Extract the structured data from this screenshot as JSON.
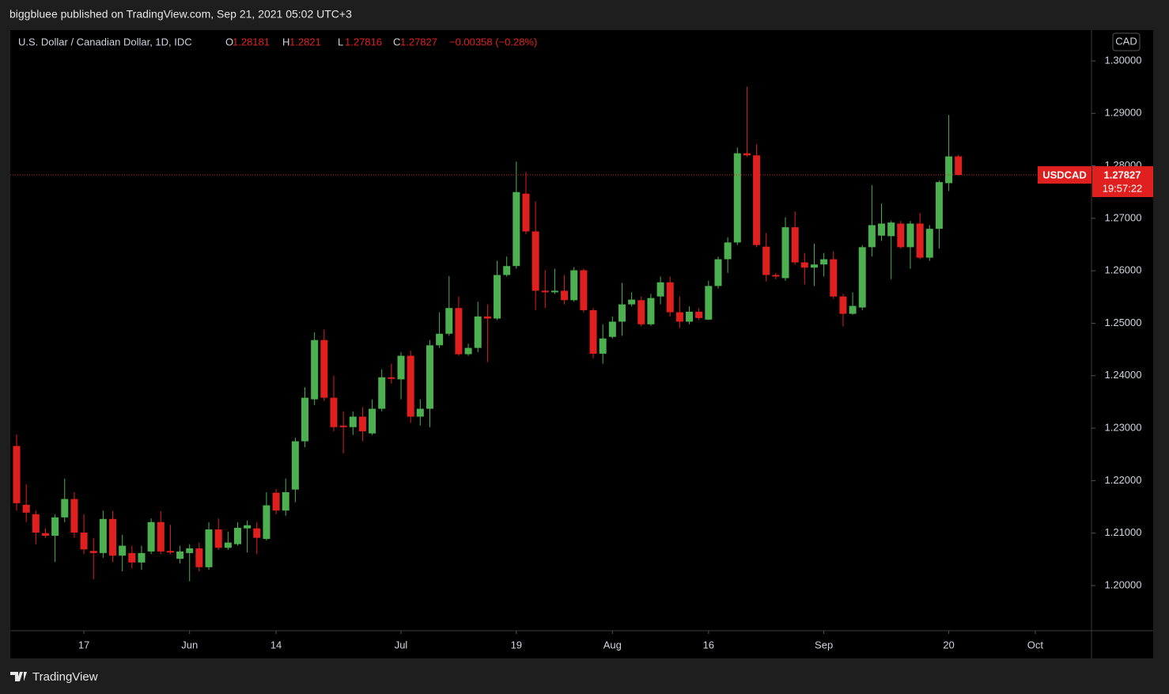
{
  "header": {
    "published": "biggbluee published on TradingView.com, Sep 21, 2021 05:02 UTC+3",
    "footer": "TradingView"
  },
  "chart_data": {
    "type": "candlestick",
    "title": "U.S. Dollar / Canadian Dollar, 1D, IDC",
    "ohlc_labels": [
      "O",
      "H",
      "L",
      "C"
    ],
    "change": "−0.00358 (−0.28%)",
    "currency": "CAD",
    "symbol": "USDCAD",
    "countdown": "19:57:22",
    "up_color": "#4caf50",
    "down_color": "#e0201f",
    "open": [
      1.2266,
      1.2154,
      1.2136,
      1.21,
      1.2095,
      1.213,
      1.2165,
      1.2101,
      1.2066,
      1.2062,
      1.2127,
      1.2057,
      1.2062,
      1.2044,
      1.2065,
      1.2121,
      1.2066,
      1.2051,
      1.2062,
      1.2071,
      1.2035,
      1.2107,
      1.2072,
      1.2079,
      1.2109,
      1.2109,
      1.2089,
      1.2177,
      1.2143,
      1.2183,
      1.2275,
      1.2355,
      1.2468,
      1.2358,
      1.2305,
      1.2302,
      1.2322,
      1.229,
      1.2337,
      1.2397,
      1.2393,
      1.2438,
      1.2322,
      1.2337,
      1.2458,
      1.248,
      1.2529,
      1.2441,
      1.2453,
      1.2513,
      1.2509,
      1.2592,
      1.2609,
      1.2747,
      1.2675,
      1.2562,
      1.2559,
      1.2562,
      1.2544,
      1.2601,
      1.2525,
      1.2442,
      1.2474,
      1.2503,
      1.2536,
      1.2544,
      1.2498,
      1.2551,
      1.2578,
      1.2521,
      1.2503,
      1.2522,
      1.2507,
      1.2571,
      1.2622,
      1.2654,
      1.2824,
      1.282,
      1.2646,
      1.2592,
      1.2586,
      1.2683,
      1.2616,
      1.2606,
      1.2612,
      1.2622,
      1.2551,
      1.2518,
      1.253,
      1.2645,
      1.2667,
      1.2666,
      1.269,
      1.2645,
      1.269,
      1.2625,
      1.268,
      1.2767,
      1.28181
    ],
    "high": [
      1.2288,
      1.2193,
      1.2143,
      1.2109,
      1.2136,
      1.2204,
      1.2178,
      1.2136,
      1.2091,
      1.2143,
      1.2142,
      1.2097,
      1.2076,
      1.2076,
      1.2128,
      1.2142,
      1.2116,
      1.2076,
      1.2079,
      1.2082,
      1.2121,
      1.2128,
      1.2103,
      1.2121,
      1.2124,
      1.2121,
      1.2178,
      1.2184,
      1.2204,
      1.2282,
      1.2378,
      1.2483,
      1.2488,
      1.24,
      1.2332,
      1.2332,
      1.234,
      1.2355,
      1.2412,
      1.2423,
      1.2445,
      1.2448,
      1.2355,
      1.2468,
      1.2521,
      1.259,
      1.2551,
      1.2461,
      1.2541,
      1.2536,
      1.2619,
      1.2627,
      1.2808,
      1.2788,
      1.2732,
      1.2601,
      1.2604,
      1.2592,
      1.2607,
      1.2604,
      1.2529,
      1.2498,
      1.2513,
      1.2577,
      1.2559,
      1.2551,
      1.2556,
      1.2589,
      1.2589,
      1.2551,
      1.2532,
      1.2529,
      1.2581,
      1.2627,
      1.2664,
      1.2835,
      1.2951,
      1.2841,
      1.2672,
      1.2596,
      1.2702,
      1.2713,
      1.2634,
      1.2652,
      1.2634,
      1.2637,
      1.2556,
      1.2559,
      1.2649,
      1.2763,
      1.2728,
      1.2695,
      1.2695,
      1.2695,
      1.271,
      1.2687,
      1.2772,
      1.2897,
      1.2821
    ],
    "low": [
      1.2143,
      1.2121,
      1.2079,
      1.2091,
      1.2045,
      1.2121,
      1.2091,
      1.206,
      1.2012,
      1.2053,
      1.2045,
      1.2027,
      1.2033,
      1.203,
      1.206,
      1.206,
      1.206,
      1.2042,
      1.2008,
      1.2027,
      1.203,
      1.2068,
      1.2068,
      1.2076,
      1.2063,
      1.206,
      1.2086,
      1.2136,
      1.2133,
      1.2159,
      1.2264,
      1.2344,
      1.2352,
      1.2294,
      1.2252,
      1.2287,
      1.2275,
      1.2287,
      1.2332,
      1.2385,
      1.2355,
      1.231,
      1.2305,
      1.2302,
      1.2453,
      1.2476,
      1.2438,
      1.2438,
      1.2445,
      1.2426,
      1.2506,
      1.2589,
      1.2604,
      1.267,
      1.2525,
      1.2529,
      1.2556,
      1.2536,
      1.2541,
      1.2521,
      1.2433,
      1.2423,
      1.2471,
      1.2476,
      1.2532,
      1.2494,
      1.2495,
      1.2536,
      1.2513,
      1.2491,
      1.2498,
      1.2506,
      1.2506,
      1.2566,
      1.2596,
      1.2649,
      1.2817,
      1.2645,
      1.258,
      1.2584,
      1.2581,
      1.2612,
      1.2574,
      1.2571,
      1.2589,
      1.2547,
      1.2494,
      1.2516,
      1.2525,
      1.2627,
      1.2657,
      1.2584,
      1.2642,
      1.2604,
      1.2622,
      1.2619,
      1.2642,
      1.2752,
      1.27816
    ],
    "close": [
      1.2157,
      1.2139,
      1.2101,
      1.2095,
      1.213,
      1.2165,
      1.2101,
      1.2069,
      1.2062,
      1.2127,
      1.2057,
      1.2076,
      1.2044,
      1.2062,
      1.2121,
      1.2065,
      1.2063,
      1.2065,
      1.2071,
      1.2035,
      1.2107,
      1.2072,
      1.2082,
      1.211,
      1.2115,
      1.2091,
      1.2153,
      1.2143,
      1.2178,
      1.2275,
      1.2358,
      1.2468,
      1.2358,
      1.2302,
      1.2302,
      1.2322,
      1.2294,
      1.2337,
      1.2397,
      1.2394,
      1.2438,
      1.2322,
      1.2337,
      1.2458,
      1.248,
      1.2529,
      1.2441,
      1.2453,
      1.2513,
      1.2509,
      1.2592,
      1.2609,
      1.275,
      1.2675,
      1.2562,
      1.2559,
      1.2562,
      1.2544,
      1.2601,
      1.2525,
      1.2442,
      1.2471,
      1.2503,
      1.2536,
      1.2545,
      1.2498,
      1.2548,
      1.2578,
      1.2521,
      1.2503,
      1.2522,
      1.251,
      1.2571,
      1.2622,
      1.2654,
      1.2824,
      1.282,
      1.2649,
      1.2592,
      1.2589,
      1.2683,
      1.2616,
      1.2606,
      1.2612,
      1.2622,
      1.2551,
      1.2518,
      1.2533,
      1.2645,
      1.2687,
      1.269,
      1.2692,
      1.2645,
      1.269,
      1.2625,
      1.268,
      1.2769,
      1.2818,
      1.27827
    ],
    "xlim": [
      -0.66,
      111.85
    ],
    "xticks": [
      {
        "value": 7,
        "label": "17"
      },
      {
        "value": 18,
        "label": "Jun"
      },
      {
        "value": 27,
        "label": "14"
      },
      {
        "value": 40,
        "label": "Jul"
      },
      {
        "value": 52,
        "label": "19"
      },
      {
        "value": 62,
        "label": "Aug"
      },
      {
        "value": 72,
        "label": "16"
      },
      {
        "value": 84,
        "label": "Sep"
      },
      {
        "value": 97,
        "label": "20"
      },
      {
        "value": 106,
        "label": "Oct"
      }
    ],
    "ylim": [
      1.1914,
      1.30588
    ],
    "yticks": [
      {
        "value": 1.2,
        "label": "1.20000"
      },
      {
        "value": 1.21,
        "label": "1.21000"
      },
      {
        "value": 1.22,
        "label": "1.22000"
      },
      {
        "value": 1.23,
        "label": "1.23000"
      },
      {
        "value": 1.24,
        "label": "1.24000"
      },
      {
        "value": 1.25,
        "label": "1.25000"
      },
      {
        "value": 1.26,
        "label": "1.26000"
      },
      {
        "value": 1.27,
        "label": "1.27000"
      },
      {
        "value": 1.28,
        "label": "1.28000"
      },
      {
        "value": 1.29,
        "label": "1.29000"
      },
      {
        "value": 1.3,
        "label": "1.30000"
      }
    ]
  }
}
